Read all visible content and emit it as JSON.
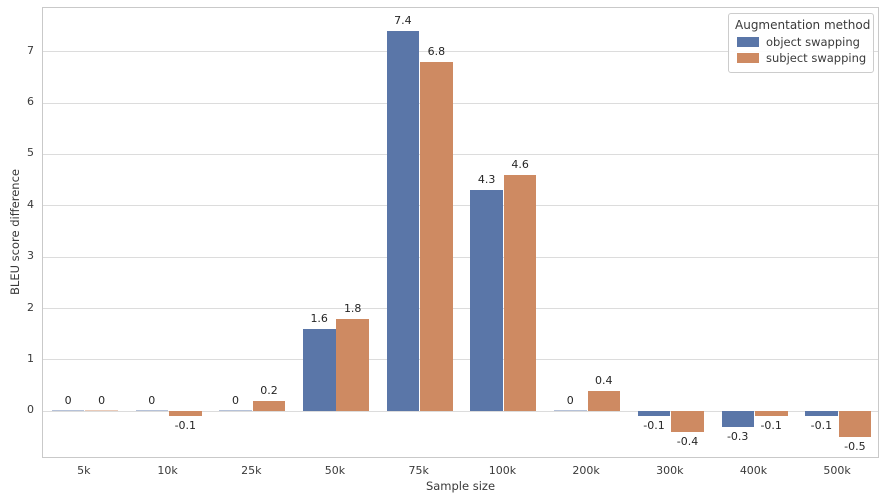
{
  "chart_data": {
    "type": "bar",
    "title": "",
    "xlabel": "Sample size",
    "ylabel": "BLEU score difference",
    "categories": [
      "5k",
      "10k",
      "25k",
      "50k",
      "75k",
      "100k",
      "200k",
      "300k",
      "400k",
      "500k"
    ],
    "series": [
      {
        "name": "object swapping",
        "color": "#5a76a8",
        "values": [
          0,
          0,
          0,
          1.6,
          7.4,
          4.3,
          0,
          -0.1,
          -0.3,
          -0.1
        ],
        "labels": [
          "0",
          "0",
          "0",
          "1.6",
          "7.4",
          "4.3",
          "0",
          "-0.1",
          "-0.3",
          "-0.1"
        ]
      },
      {
        "name": "subject swapping",
        "color": "#ce8a62",
        "values": [
          0,
          -0.1,
          0.2,
          1.8,
          6.8,
          4.6,
          0.4,
          -0.4,
          -0.1,
          -0.5
        ],
        "labels": [
          "0",
          "-0.1",
          "0.2",
          "1.8",
          "6.8",
          "4.6",
          "0.4",
          "-0.4",
          "-0.1",
          "-0.5"
        ]
      }
    ],
    "legend": {
      "title": "Augmentation method",
      "position": "upper right"
    },
    "y_ticks": [
      "0",
      "1",
      "2",
      "3",
      "4",
      "5",
      "6",
      "7"
    ],
    "ylim": [
      -0.93,
      7.85
    ],
    "grid": true
  }
}
